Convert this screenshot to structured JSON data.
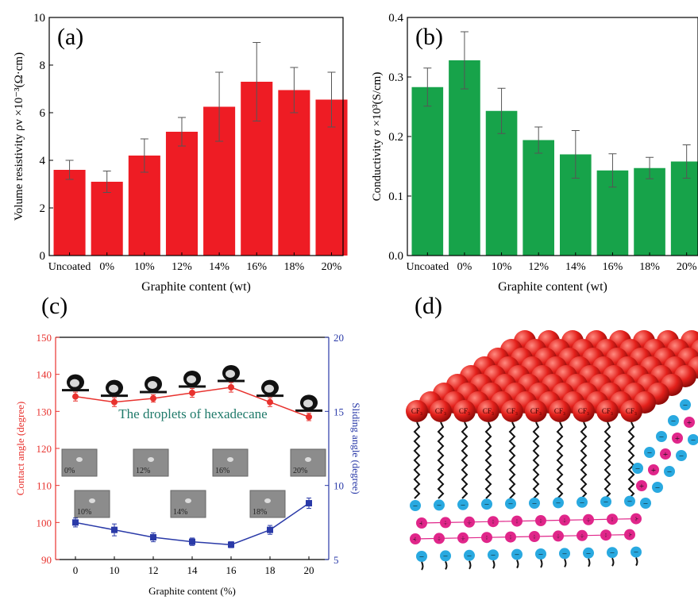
{
  "chart_data": [
    {
      "type": "bar",
      "panel_label": "(a)",
      "categories": [
        "Uncoated",
        "0%",
        "10%",
        "12%",
        "14%",
        "16%",
        "18%",
        "20%"
      ],
      "values": [
        3.6,
        3.1,
        4.2,
        5.2,
        6.25,
        7.3,
        6.95,
        6.55
      ],
      "errors": [
        0.4,
        0.45,
        0.7,
        0.6,
        1.45,
        1.65,
        0.95,
        1.15
      ],
      "xlabel": "Graphite content (wt)",
      "ylabel": "Volume resistivity ρv ×10⁻³(Ω·cm)",
      "ylim": [
        0,
        10
      ],
      "yticks": [
        "0",
        "2",
        "4",
        "6",
        "8",
        "10"
      ],
      "color": "#ee1c24",
      "grid": false
    },
    {
      "type": "bar",
      "panel_label": "(b)",
      "categories": [
        "Uncoated",
        "0%",
        "10%",
        "12%",
        "14%",
        "16%",
        "18%",
        "20%"
      ],
      "values": [
        0.283,
        0.328,
        0.243,
        0.194,
        0.17,
        0.143,
        0.147,
        0.158
      ],
      "errors": [
        0.032,
        0.048,
        0.038,
        0.022,
        0.04,
        0.028,
        0.018,
        0.028
      ],
      "xlabel": "Graphite content (wt)",
      "ylabel": "Conductivity σ ×10³(S/cm)",
      "ylim": [
        0,
        0.4
      ],
      "yticks": [
        "0.0",
        "0.1",
        "0.2",
        "0.3",
        "0.4"
      ],
      "color": "#17a34a",
      "grid": false
    },
    {
      "type": "line",
      "panel_label": "(c)",
      "x": [
        0,
        10,
        12,
        14,
        16,
        18,
        20
      ],
      "xticks": [
        "0",
        "10",
        "12",
        "14",
        "16",
        "18",
        "20"
      ],
      "xlabel": "Graphite content (%)",
      "series": [
        {
          "axis": "left",
          "values": [
            134,
            132.5,
            133.5,
            135,
            136.5,
            132.5,
            128.5
          ],
          "errors": [
            1.2,
            1.2,
            1,
            1.2,
            1.3,
            1.2,
            1
          ],
          "color": "#e8322e",
          "marker": "circle"
        },
        {
          "axis": "right",
          "values": [
            7.5,
            7,
            6.5,
            6.2,
            6,
            7,
            8.8
          ],
          "errors": [
            0.3,
            0.4,
            0.3,
            0.25,
            0.2,
            0.3,
            0.35
          ],
          "color": "#2a3aa8",
          "marker": "square"
        }
      ],
      "ylabel_left": "Contact angle (degree)",
      "ylim_left": [
        90,
        150
      ],
      "yticks_left": [
        "90",
        "100",
        "110",
        "120",
        "130",
        "140",
        "150"
      ],
      "ylabel_right": "Sliding angle (degree)",
      "ylim_right": [
        5,
        20
      ],
      "yticks_right": [
        "5",
        "10",
        "15",
        "20"
      ],
      "annotation": "The droplets of hexadecane",
      "photo_labels": [
        "0%",
        "10%",
        "12%",
        "14%",
        "16%",
        "18%",
        "20%"
      ]
    }
  ],
  "panel_d": {
    "panel_label": "(d)",
    "sphere_label": "CF₃",
    "plus_sign": "+",
    "minus_sign": "−"
  }
}
